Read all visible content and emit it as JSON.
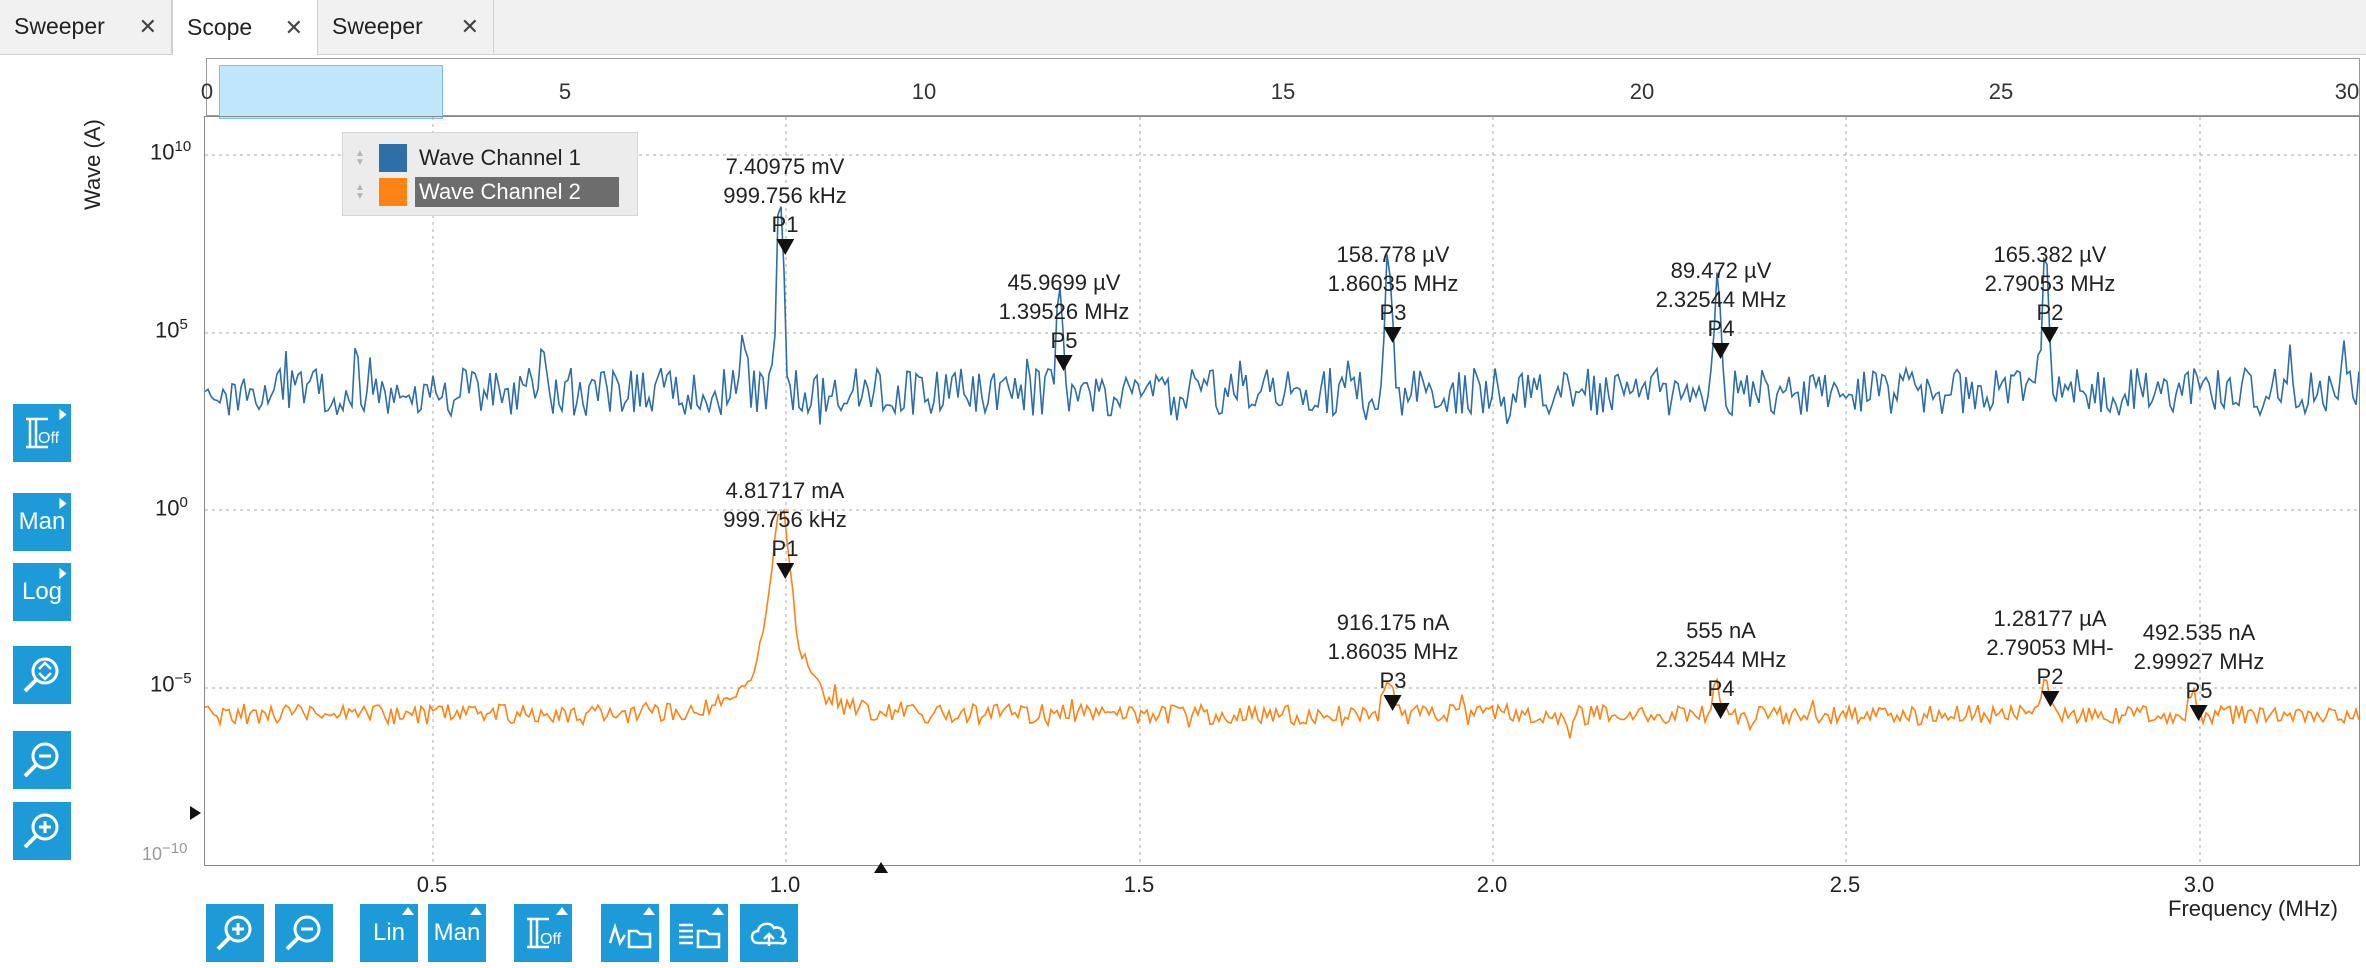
{
  "tabs": [
    {
      "label": "Sweeper",
      "active": false
    },
    {
      "label": "Scope",
      "active": true
    },
    {
      "label": "Sweeper",
      "active": false
    }
  ],
  "tab_close_glyph": "✕",
  "overview": {
    "ticks": [
      "0",
      "5",
      "10",
      "15",
      "20",
      "25",
      "30"
    ],
    "selection_range": [
      0.2,
      3.25
    ]
  },
  "left_tools": [
    {
      "label": "Off",
      "icon": "cursor-off-icon"
    },
    {
      "label": "Man",
      "icon": "manual-scale-icon"
    },
    {
      "label": "Log",
      "icon": "log-scale-icon"
    },
    {
      "label": "",
      "icon": "zoom-fit-icon"
    },
    {
      "label": "",
      "icon": "zoom-out-icon"
    },
    {
      "label": "",
      "icon": "zoom-in-icon"
    }
  ],
  "bottom_tools": [
    {
      "label": "",
      "icon": "zoom-in-icon"
    },
    {
      "label": "",
      "icon": "zoom-out-icon"
    },
    {
      "label": "Lin",
      "icon": "linear-scale-icon"
    },
    {
      "label": "Man",
      "icon": "manual-scale-icon"
    },
    {
      "label": "Off",
      "icon": "cursor-off-icon"
    },
    {
      "label": "",
      "icon": "save-waveform-icon"
    },
    {
      "label": "",
      "icon": "save-table-icon"
    },
    {
      "label": "",
      "icon": "cloud-upload-icon"
    }
  ],
  "plot": {
    "ylabel": "Wave (A)",
    "xlabel": "Frequency (MHz)",
    "y_ticks": [
      {
        "base": "10",
        "exp": "10"
      },
      {
        "base": "10",
        "exp": "5"
      },
      {
        "base": "10",
        "exp": "0"
      },
      {
        "base": "10",
        "exp": "−5"
      },
      {
        "base": "10",
        "exp": "−10"
      }
    ],
    "x_ticks": [
      "0.5",
      "1.0",
      "1.5",
      "2.0",
      "2.5",
      "3.0"
    ]
  },
  "colors": {
    "channel1": "#2d6ea8",
    "channel2": "#ff8214",
    "tool": "#1c9bd8",
    "selection": "#bfe6fa"
  },
  "legend": [
    {
      "name": "Wave Channel 1",
      "color": "#2f6fa8",
      "selected": false
    },
    {
      "name": "Wave Channel 2",
      "color": "#ff8214",
      "selected": true
    }
  ],
  "markers_ch1": [
    {
      "value": "7.40975 mV",
      "freq": "999.756 kHz",
      "tag": "P1"
    },
    {
      "value": "45.9699 µV",
      "freq": "1.39526 MHz",
      "tag": "P5"
    },
    {
      "value": "158.778 µV",
      "freq": "1.86035 MHz",
      "tag": "P3"
    },
    {
      "value": "89.472 µV",
      "freq": "2.32544 MHz",
      "tag": "P4"
    },
    {
      "value": "165.382 µV",
      "freq": "2.79053 MHz",
      "tag": "P2"
    }
  ],
  "markers_ch2": [
    {
      "value": "4.81717 mA",
      "freq": "999.756 kHz",
      "tag": "P1"
    },
    {
      "value": "916.175 nA",
      "freq": "1.86035 MHz",
      "tag": "P3"
    },
    {
      "value": "555 nA",
      "freq": "2.32544 MHz",
      "tag": "P4"
    },
    {
      "value": "1.28177 µA",
      "freq": "2.79053 MH-",
      "tag": "P2"
    },
    {
      "value": "492.535 nA",
      "freq": "2.99927 MHz",
      "tag": "P5"
    }
  ]
}
